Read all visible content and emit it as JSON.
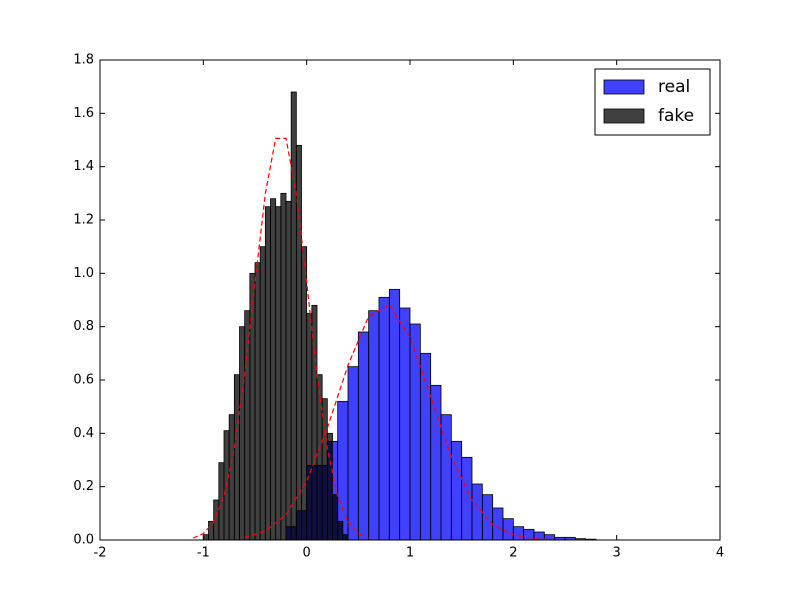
{
  "chart_data": {
    "type": "histogram",
    "xlim": [
      -2,
      4
    ],
    "ylim": [
      0,
      1.8
    ],
    "xticks": [
      -2,
      -1,
      0,
      1,
      2,
      3,
      4
    ],
    "yticks": [
      {
        "value": 0,
        "label": "0.0"
      },
      0.2,
      0.4,
      0.6,
      0.8,
      {
        "value": 1,
        "label": "1.0"
      },
      1.2,
      1.4,
      1.6,
      1.8
    ],
    "legend": "upper right",
    "series": [
      {
        "name": "real",
        "color": "#0000ff",
        "opacity": 0.75,
        "bins": [
          -0.2,
          -0.1,
          0,
          0.1,
          0.2,
          0.3,
          0.4,
          0.5,
          0.6,
          0.7,
          0.8,
          0.9,
          1,
          1.1,
          1.2,
          1.3,
          1.4,
          1.5,
          1.6,
          1.7,
          1.8,
          1.9,
          2,
          2.1,
          2.2,
          2.3,
          2.4,
          2.5,
          2.6,
          2.7,
          2.8
        ],
        "values": [
          0.05,
          0.11,
          0.28,
          0.28,
          0.37,
          0.52,
          0.65,
          0.78,
          0.86,
          0.91,
          0.94,
          0.87,
          0.81,
          0.7,
          0.58,
          0.47,
          0.37,
          0.31,
          0.21,
          0.17,
          0.12,
          0.08,
          0.05,
          0.04,
          0.03,
          0.02,
          0.01,
          0.01,
          0.005,
          0.003
        ]
      },
      {
        "name": "fake",
        "color": "#000000",
        "opacity": 0.75,
        "bins": [
          -1,
          -0.95,
          -0.9,
          -0.85,
          -0.8,
          -0.75,
          -0.7,
          -0.65,
          -0.6,
          -0.55,
          -0.5,
          -0.45,
          -0.4,
          -0.35,
          -0.3,
          -0.25,
          -0.2,
          -0.15,
          -0.1,
          -0.05,
          0,
          0.05,
          0.1,
          0.15,
          0.2,
          0.25,
          0.3,
          0.35,
          0.4
        ],
        "values": [
          0.02,
          0.07,
          0.15,
          0.29,
          0.41,
          0.47,
          0.62,
          0.8,
          0.86,
          1.0,
          1.04,
          1.1,
          1.25,
          1.28,
          1.25,
          1.3,
          1.27,
          1.68,
          1.48,
          1.1,
          0.85,
          0.88,
          0.62,
          0.53,
          0.4,
          0.17,
          0.07,
          0.02
        ]
      }
    ],
    "density": [
      {
        "color": "#ff0000",
        "linestyle": "dashed",
        "x": [
          -0.6,
          -0.4,
          -0.2,
          0,
          0.2,
          0.4,
          0.6,
          0.8,
          1,
          1.2,
          1.4,
          1.6,
          1.8,
          2,
          2.2,
          2.4
        ],
        "values": [
          0.0098,
          0.034,
          0.095,
          0.221,
          0.42,
          0.655,
          0.839,
          0.881,
          0.76,
          0.538,
          0.312,
          0.149,
          0.058,
          0.019,
          0.005,
          0.001
        ]
      },
      {
        "color": "#ff0000",
        "linestyle": "dashed",
        "x": [
          -1.1,
          -1,
          -0.9,
          -0.8,
          -0.7,
          -0.6,
          -0.5,
          -0.4,
          -0.3,
          -0.2,
          -0.1,
          0,
          0.1,
          0.2,
          0.3,
          0.4,
          0.5,
          0.6
        ],
        "values": [
          0.007,
          0.024,
          0.067,
          0.164,
          0.343,
          0.62,
          0.966,
          1.299,
          1.506,
          1.506,
          1.299,
          0.966,
          0.62,
          0.343,
          0.164,
          0.067,
          0.024,
          0.007
        ]
      }
    ]
  }
}
